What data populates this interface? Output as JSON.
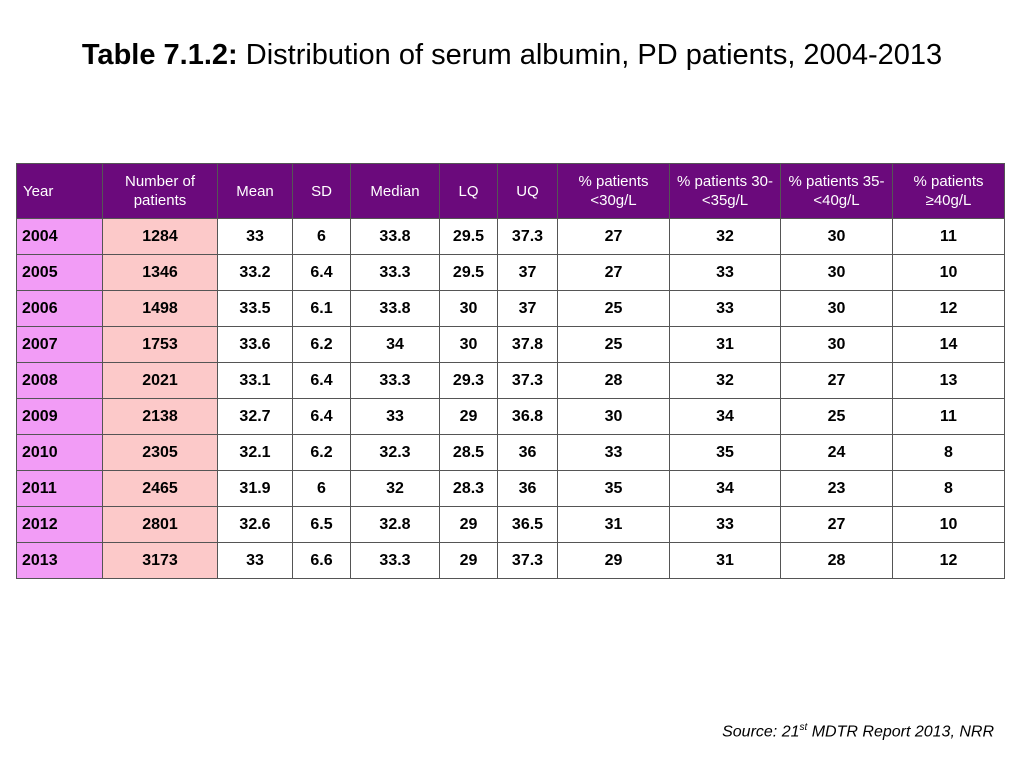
{
  "title": {
    "label": "Table 7.1.2:",
    "text": "Distribution of serum albumin, PD patients, 2004-2013"
  },
  "table": {
    "headers": [
      "Year",
      "Number of patients",
      "Mean",
      "SD",
      "Median",
      "LQ",
      "UQ",
      "% patients <30g/L",
      "% patients 30-<35g/L",
      "% patients 35-<40g/L",
      "% patients ≥40g/L"
    ],
    "rows": [
      [
        "2004",
        "1284",
        "33",
        "6",
        "33.8",
        "29.5",
        "37.3",
        "27",
        "32",
        "30",
        "11"
      ],
      [
        "2005",
        "1346",
        "33.2",
        "6.4",
        "33.3",
        "29.5",
        "37",
        "27",
        "33",
        "30",
        "10"
      ],
      [
        "2006",
        "1498",
        "33.5",
        "6.1",
        "33.8",
        "30",
        "37",
        "25",
        "33",
        "30",
        "12"
      ],
      [
        "2007",
        "1753",
        "33.6",
        "6.2",
        "34",
        "30",
        "37.8",
        "25",
        "31",
        "30",
        "14"
      ],
      [
        "2008",
        "2021",
        "33.1",
        "6.4",
        "33.3",
        "29.3",
        "37.3",
        "28",
        "32",
        "27",
        "13"
      ],
      [
        "2009",
        "2138",
        "32.7",
        "6.4",
        "33",
        "29",
        "36.8",
        "30",
        "34",
        "25",
        "11"
      ],
      [
        "2010",
        "2305",
        "32.1",
        "6.2",
        "32.3",
        "28.5",
        "36",
        "33",
        "35",
        "24",
        "8"
      ],
      [
        "2011",
        "2465",
        "31.9",
        "6",
        "32",
        "28.3",
        "36",
        "35",
        "34",
        "23",
        "8"
      ],
      [
        "2012",
        "2801",
        "32.6",
        "6.5",
        "32.8",
        "29",
        "36.5",
        "31",
        "33",
        "27",
        "10"
      ],
      [
        "2013",
        "3173",
        "33",
        "6.6",
        "33.3",
        "29",
        "37.3",
        "29",
        "31",
        "28",
        "12"
      ]
    ]
  },
  "source": {
    "prefix": "Source: 21",
    "sup": "st",
    "suffix": " MDTR Report 2013, NRR"
  },
  "colors": {
    "header_bg": "#6b0a7c",
    "year_col_bg": "#f29cf6",
    "count_col_bg": "#fcc9c9"
  }
}
